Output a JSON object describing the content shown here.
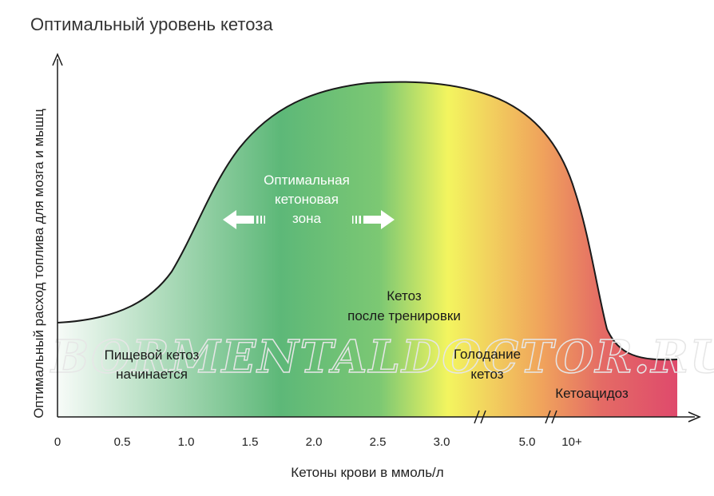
{
  "title": "Оптимальный уровень кетоза",
  "watermark": "BORMENTALDOCTOR.RU",
  "chart_data": {
    "type": "area",
    "xlabel": "Кетоны крови в ммоль/л",
    "ylabel": "Оптимальный расход топлива для мозга и мышц",
    "x_ticks": [
      "0",
      "0.5",
      "1.0",
      "1.5",
      "2.0",
      "2.5",
      "3.0",
      "5.0",
      "10+"
    ],
    "axis_breaks": [
      "3.0–5.0",
      "5.0–10+"
    ],
    "annotations": {
      "optimal_zone": [
        "Оптимальная",
        "кетоновая",
        "зона"
      ],
      "nutritional": [
        "Пищевой кетоз",
        "начинается"
      ],
      "post_exercise": [
        "Кетоз",
        "после тренировки"
      ],
      "starvation": [
        "Голодание",
        "кетоз"
      ],
      "ketoacidosis": "Кетоацидоз"
    },
    "colors": {
      "start": "#f7fbf8",
      "green": "#5db878",
      "yellow": "#f3f55f",
      "orange": "#f0a45c",
      "red": "#df4a6c",
      "curve": "#1a1a1a"
    }
  }
}
